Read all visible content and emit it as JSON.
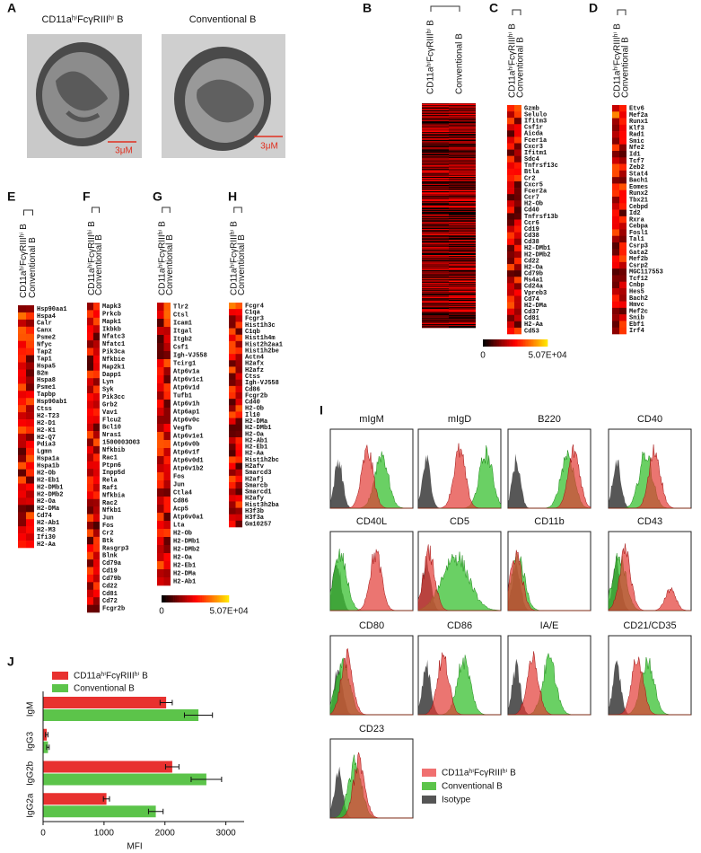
{
  "figure": {
    "panel_letters": [
      "A",
      "B",
      "C",
      "D",
      "E",
      "F",
      "G",
      "H",
      "I",
      "J"
    ],
    "population_label": "CD11aʰⁱFcγRIIIʰⁱ B",
    "conventional_label": "Conventional B",
    "isotype_label": "Isotype",
    "scale_bar": "3μM",
    "colorbar": {
      "min_label": "0",
      "max_label": "5.07E+04"
    },
    "gene_lists": {
      "C": [
        "Gzmb",
        "Selulo",
        "Ifitm3",
        "Csf1r",
        "Aicda",
        "Fcer1a",
        "Cxcr3",
        "Ifitm1",
        "Sdc4",
        "Tnfrsf13c",
        "Btla",
        "Cr2",
        "Cxcr5",
        "Fcer2a",
        "Ccr7",
        "H2-Ob",
        "Cd40",
        "Tnfrsf13b",
        "Ccr6",
        "Cd19",
        "Cd38",
        "Cd38",
        "H2-DMb1",
        "H2-DMb2",
        "Cd22",
        "H2-Oa",
        "Cd79b",
        "Ms4a1",
        "Cd24a",
        "Vpreb3",
        "Cd74",
        "H2-DMa",
        "Cd37",
        "Cd81",
        "H2-Aa",
        "Cd53"
      ],
      "D": [
        "Etv6",
        "Mef2a",
        "Runx1",
        "Klf3",
        "Rad1",
        "Smic",
        "Nfe2",
        "Id1",
        "Tcf7",
        "Zeb2",
        "Stat4",
        "Bach1",
        "Eomes",
        "Runx2",
        "Tbx21",
        "Cebpd",
        "Id2",
        "Rxra",
        "Cebpa",
        "Fosl1",
        "Tal1",
        "Csrp3",
        "Gata2",
        "Mef2b",
        "Csrp2",
        "MGC117553",
        "Tcf12",
        "Cnbp",
        "Hes5",
        "Bach2",
        "Hmvc",
        "Mef2c",
        "Snib",
        "Ebf1",
        "Irf4"
      ],
      "E": [
        "Hsp90aa1",
        "Hspa4",
        "Calr",
        "Canx",
        "Psme2",
        "Nfyc",
        "Tap2",
        "Tap1",
        "Hspa5",
        "B2m",
        "Hspa8",
        "Psme1",
        "Tapbp",
        "Hsp90ab1",
        "Ctss",
        "H2-T23",
        "H2-D1",
        "H2-K1",
        "H2-Q7",
        "Pdia3",
        "Lgmn",
        "Hspa1a",
        "Hspa1b",
        "H2-Ob",
        "H2-Eb1",
        "H2-DMb1",
        "H2-DMb2",
        "H2-Oa",
        "H2-DMa",
        "Cd74",
        "H2-Ab1",
        "H2-M3",
        "Ifi30",
        "H2-Aa"
      ],
      "F": [
        "Mapk3",
        "Prkcb",
        "Mapk1",
        "Ikbkb",
        "Nfatc3",
        "Nfatc1",
        "Pik3ca",
        "Nfkbie",
        "Map2k1",
        "Dapp1",
        "Lyn",
        "Syk",
        "Pik3cc",
        "Grb2",
        "Vav1",
        "Flcu2",
        "Bcl10",
        "Nras1",
        "1500003O03",
        "Nfkbib",
        "Rac1",
        "Ptpn6",
        "Inpp5d",
        "Rela",
        "Raf1",
        "Nfkbia",
        "Rac2",
        "Nfkb1",
        "Jun",
        "Fos",
        "Cr2",
        "Btk",
        "Rasgrp3",
        "Blnk",
        "Cd79a",
        "Cd19",
        "Cd79b",
        "Cd22",
        "Cd81",
        "Cd72",
        "Fcgr2b"
      ],
      "G": [
        "Tlr2",
        "Ctsl",
        "Icam1",
        "Itgal",
        "Itgb2",
        "Csf1",
        "Igh-VJ558",
        "Tcirg1",
        "Atp6v1a",
        "Atp6v1c1",
        "Atp6v1d",
        "Tufb1",
        "Atp6v1h",
        "Atp6ap1",
        "Atp6v0c",
        "Vegfb",
        "Atp6v1e1",
        "Atp6v0b",
        "Atp6v1f",
        "Atp6v0d1",
        "Atp6v1b2",
        "Fos",
        "Jun",
        "Ctla4",
        "Cd86",
        "Acp5",
        "Atp6v0a1",
        "Lta",
        "H2-Ob",
        "H2-DMb1",
        "H2-DMb2",
        "H2-Oa",
        "H2-Eb1",
        "H2-DMa",
        "H2-Ab1"
      ],
      "H": [
        "Fcgr4",
        "C1qa",
        "Fcgr3",
        "Hist1h3c",
        "C1qb",
        "Hist1h4m",
        "Hist2h2aa1",
        "Hist1h2be",
        "Actn4",
        "H2afx",
        "H2afz",
        "Ctss",
        "Igh-VJ558",
        "Cd86",
        "Fcgr2b",
        "Cd40",
        "H2-Ob",
        "Il10",
        "H2-DMa",
        "H2-DMb1",
        "H2-Oa",
        "H2-Ab1",
        "H2-Eb1",
        "H2-Aa",
        "Hist1h2bc",
        "H2afv",
        "Smarcd3",
        "H2afj",
        "Smarcb",
        "Smarcd1",
        "H2afy",
        "Hist3h2ba",
        "H3f3b",
        "H3f3a",
        "Gm10257"
      ]
    },
    "histogram_markers": [
      "mIgM",
      "mIgD",
      "B220",
      "CD40",
      "CD40L",
      "CD5",
      "CD11b",
      "CD43",
      "CD80",
      "CD86",
      "IA/E",
      "CD21/CD35",
      "CD23"
    ]
  },
  "chart_data": {
    "type": "barh",
    "categories": [
      "IgM",
      "IgG3",
      "IgG2b",
      "IgG2a"
    ],
    "series": [
      {
        "name": "CD11aʰⁱFcγRIIIʰⁱ B",
        "color": "#e8312f",
        "values": [
          2020,
          60,
          2120,
          1040
        ],
        "errors": [
          100,
          20,
          110,
          50
        ]
      },
      {
        "name": "Conventional B",
        "color": "#5cc44a",
        "values": [
          2550,
          80,
          2680,
          1850
        ],
        "errors": [
          230,
          20,
          250,
          120
        ]
      }
    ],
    "xlim": [
      0,
      3300
    ],
    "xticks": [
      0,
      1000,
      2000,
      3000
    ],
    "xlabel": "MFI"
  }
}
